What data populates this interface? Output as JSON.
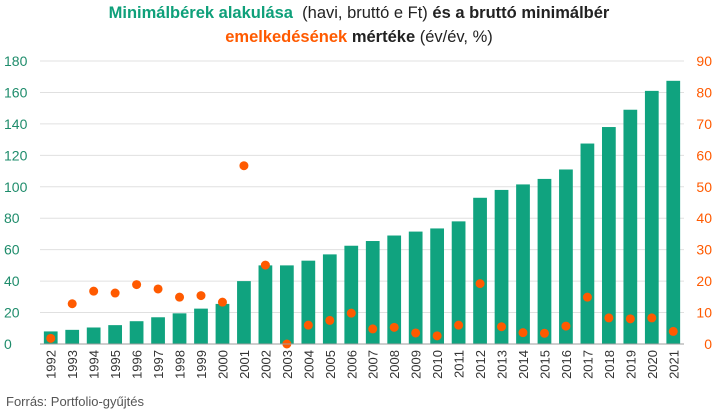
{
  "title": {
    "part1": "Minimálbérek alakulása",
    "part2": "(havi, bruttó e Ft)",
    "part3": "és a bruttó minimálbér",
    "part4": "emelkedésének",
    "part5": "mértéke",
    "part6": "(év/év, %)"
  },
  "source": "Forrás: Portfolio-gyűjtés",
  "colors": {
    "bars": "#10a37f",
    "dots": "#ff5a00",
    "left_axis_text": "#1e8c6b",
    "right_axis_text": "#ff5a00",
    "grid": "#e0e0e0",
    "text": "#222222"
  },
  "chart_data": {
    "type": "bar",
    "categories": [
      "1992",
      "1993",
      "1994",
      "1995",
      "1996",
      "1997",
      "1998",
      "1999",
      "2000",
      "2001",
      "2002",
      "2003",
      "2004",
      "2005",
      "2006",
      "2007",
      "2008",
      "2009",
      "2010",
      "2011",
      "2012",
      "2013",
      "2014",
      "2015",
      "2016",
      "2017",
      "2018",
      "2019",
      "2020",
      "2021"
    ],
    "series": [
      {
        "type": "bar",
        "axis": "left",
        "values": [
          8,
          9,
          10.5,
          12,
          14.5,
          17,
          19.5,
          22.5,
          25.5,
          40,
          50,
          50,
          53,
          57,
          62.5,
          65.5,
          69,
          71.5,
          73.5,
          78,
          93,
          98,
          101.5,
          105,
          111,
          127.5,
          138,
          149,
          161,
          167.4
        ]
      },
      {
        "type": "scatter",
        "axis": "right",
        "values": [
          1.8,
          12.8,
          16.8,
          16.2,
          18.9,
          17.5,
          14.9,
          15.4,
          13.3,
          56.7,
          25.1,
          0,
          6,
          7.5,
          9.8,
          4.8,
          5.3,
          3.5,
          2.6,
          6,
          19.2,
          5.5,
          3.6,
          3.4,
          5.7,
          14.9,
          8.3,
          8,
          8.3,
          4
        ]
      }
    ],
    "y_left": {
      "min": 0,
      "max": 180,
      "ticks": [
        0,
        20,
        40,
        60,
        80,
        100,
        120,
        140,
        160,
        180
      ]
    },
    "y_right": {
      "min": 0,
      "max": 90,
      "ticks": [
        0,
        10,
        20,
        30,
        40,
        50,
        60,
        70,
        80,
        90
      ]
    },
    "grid": true,
    "legend": "none"
  }
}
